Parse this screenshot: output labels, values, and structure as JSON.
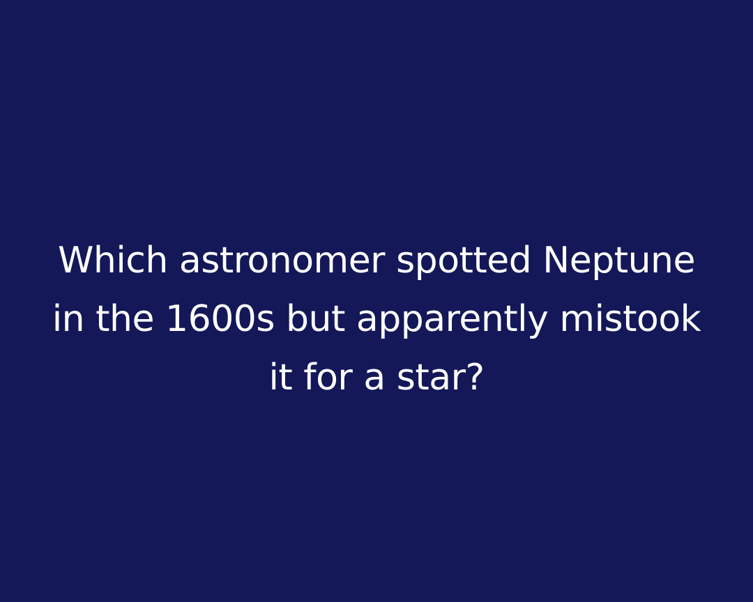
{
  "background_color": "#141858",
  "text_color": "#ffffff",
  "question": {
    "lines": [
      "Which astronomer spotted Neptune",
      "in the 1600s but apparently mistook",
      "it for a star?"
    ]
  }
}
